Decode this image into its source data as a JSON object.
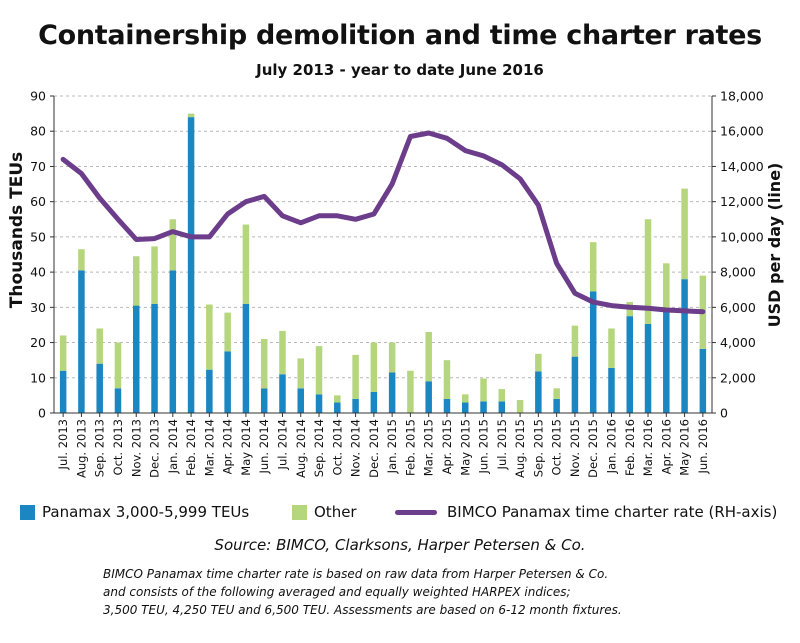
{
  "title": "Containership demolition and time charter rates",
  "subtitle": "July 2013 - year to date June 2016",
  "colors": {
    "panamax": "#1a86c2",
    "other": "#b5d67c",
    "line": "#6b3d8a"
  },
  "legend": {
    "panamax": "Panamax 3,000-5,999 TEUs",
    "other": "Other",
    "line": "BIMCO Panamax time charter rate (RH-axis)"
  },
  "source": "Source: BIMCO, Clarksons, Harper Petersen & Co.",
  "note": [
    "BIMCO Panamax time charter rate is based on raw data from Harper Petersen & Co.",
    "and consists of the following averaged and equally weighted HARPEX indices;",
    "3,500 TEU, 4,250 TEU and 6,500 TEU. Assessments are based on 6-12 month fixtures."
  ],
  "chart_data": {
    "type": "bar",
    "stacked": true,
    "ylabel": "Thousands TEUs",
    "y2label": "USD per day (line)",
    "ylim": [
      0,
      90
    ],
    "y2lim": [
      0,
      18000
    ],
    "yticks": [
      "0",
      "10",
      "20",
      "30",
      "40",
      "50",
      "60",
      "70",
      "80",
      "90"
    ],
    "y2ticks": [
      "0",
      "2,000",
      "4,000",
      "6,000",
      "8,000",
      "10,000",
      "12,000",
      "14,000",
      "16,000",
      "18,000"
    ],
    "grid": true,
    "categories": [
      "Jul. 2013",
      "Aug. 2013",
      "Sep. 2013",
      "Oct. 2013",
      "Nov. 2013",
      "Dec. 2013",
      "Jan. 2014",
      "Feb. 2014",
      "Mar. 2014",
      "Apr. 2014",
      "May 2014",
      "Jun. 2014",
      "Jul. 2014",
      "Aug. 2014",
      "Sep. 2014",
      "Oct. 2014",
      "Nov. 2014",
      "Dec. 2014",
      "Jan. 2015",
      "Feb. 2015",
      "Mar. 2015",
      "Apr. 2015",
      "May 2015",
      "Jun. 2015",
      "Jul. 2015",
      "Aug. 2015",
      "Sep. 2015",
      "Oct. 2015",
      "Nov. 2015",
      "Dec. 2015",
      "Jan. 2016",
      "Feb. 2016",
      "Mar. 2016",
      "Apr. 2016",
      "May 2016",
      "Jun. 2016"
    ],
    "series": [
      {
        "name": "Panamax 3,000-5,999 TEUs",
        "type": "bar",
        "values": [
          12,
          40.5,
          14,
          7,
          30.5,
          31,
          40.5,
          84,
          12.3,
          17.5,
          31,
          7,
          11,
          7,
          5.3,
          3,
          4,
          6,
          11.5,
          0,
          9,
          4,
          3,
          3.3,
          3.3,
          0,
          11.8,
          4,
          16,
          34.5,
          12.8,
          27.5,
          25.3,
          29.5,
          38,
          18.2
        ]
      },
      {
        "name": "Other",
        "type": "bar",
        "values": [
          10,
          6,
          10,
          13,
          14,
          16.3,
          14.5,
          1,
          18.5,
          11,
          22.5,
          14,
          12.3,
          8.5,
          13.7,
          2,
          12.5,
          14,
          8.5,
          12,
          14,
          11,
          2.3,
          6.5,
          3.5,
          3.7,
          5,
          3,
          8.8,
          14,
          11.2,
          4,
          29.7,
          13,
          25.7,
          20.8
        ]
      },
      {
        "name": "BIMCO Panamax time charter rate (RH-axis)",
        "type": "line",
        "values": [
          14400,
          13600,
          12200,
          11000,
          9850,
          9900,
          10300,
          10000,
          10000,
          11300,
          12000,
          12300,
          11200,
          10800,
          11200,
          11200,
          11000,
          11300,
          13000,
          15700,
          15900,
          15600,
          14900,
          14600,
          14100,
          13300,
          11800,
          8500,
          6800,
          6300,
          6100,
          6000,
          5950,
          5850,
          5800,
          5750
        ]
      }
    ]
  }
}
